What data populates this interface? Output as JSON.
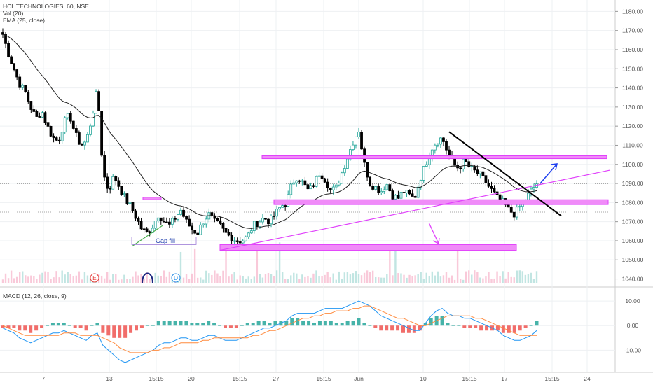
{
  "legend": {
    "symbol": "HCL TECHNOLOGIES, 60, NSE",
    "volume": "Vol (20)",
    "ema": "EMA (25, close)",
    "macd": "MACD (12, 26, close, 9)"
  },
  "colors": {
    "up": "#26a69a",
    "down": "#000000",
    "ema": "#222222",
    "zone": "#e040fb",
    "zone_fill": "#f08bf8",
    "arrow_pink": "#e040fb",
    "arrow_blue": "#1e3ff0",
    "macd_line": "#2196f3",
    "signal_line": "#ff8a3d",
    "hist_up": "#26a69a",
    "hist_down": "#ef5350",
    "trendline": "#000000"
  },
  "chart_data": [
    {
      "type": "candlestick",
      "title": "HCL TECHNOLOGIES, 60, NSE",
      "ylim": [
        1038,
        1186
      ],
      "y_ticks": [
        1040,
        1050,
        1060,
        1070,
        1080,
        1090,
        1100,
        1110,
        1120,
        1130,
        1140,
        1150,
        1160,
        1170,
        1180
      ],
      "x_ticks": [
        "7",
        "13",
        "15:15",
        "20",
        "15:15",
        "27",
        "15:15",
        "Jun",
        "10",
        "15:15",
        "17",
        "15:15",
        "24"
      ],
      "grid": true,
      "current_price_line": 1090,
      "reference_line": 1075,
      "path": [
        1168,
        1158,
        1150,
        1142,
        1138,
        1130,
        1124,
        1128,
        1120,
        1114,
        1112,
        1122,
        1126,
        1116,
        1110,
        1112,
        1124,
        1140,
        1096,
        1086,
        1094,
        1088,
        1082,
        1078,
        1072,
        1066,
        1064,
        1068,
        1074,
        1070,
        1068,
        1072,
        1076,
        1070,
        1066,
        1064,
        1070,
        1074,
        1070,
        1068,
        1064,
        1062,
        1060,
        1060,
        1062,
        1068,
        1070,
        1072,
        1070,
        1074,
        1078,
        1080,
        1090,
        1094,
        1090,
        1086,
        1090,
        1096,
        1092,
        1086,
        1088,
        1096,
        1104,
        1112,
        1118,
        1100,
        1090,
        1088,
        1086,
        1090,
        1084,
        1082,
        1086,
        1084,
        1082,
        1092,
        1100,
        1108,
        1112,
        1114,
        1106,
        1100,
        1098,
        1102,
        1098,
        1096,
        1094,
        1090,
        1086,
        1082,
        1080,
        1076,
        1074,
        1078,
        1082,
        1086,
        1090
      ],
      "ema_period": 25,
      "series": [
        {
          "name": "Vol (20)",
          "volume_ref": true
        },
        {
          "name": "EMA (25, close)",
          "line": true
        }
      ],
      "markers": [
        "E",
        "D"
      ],
      "annotations": [
        {
          "text": "Gap fill"
        }
      ],
      "zones": [
        {
          "from": 1103,
          "to": 1104,
          "range": [
            "2019-06-01",
            "2019-06-20"
          ]
        },
        {
          "from": 1079,
          "to": 1081,
          "range": [
            "2019-05-28",
            "2019-06-20"
          ]
        },
        {
          "from": 1055,
          "to": 1058,
          "range": [
            "2019-05-22",
            "2019-06-18"
          ]
        },
        {
          "from": 1081,
          "to": 1083,
          "range": [
            "2019-05-15",
            "2019-05-16"
          ]
        }
      ]
    },
    {
      "type": "macd",
      "title": "MACD (12, 26, close, 9)",
      "ylim": [
        -17,
        14
      ],
      "y_ticks": [
        10,
        0,
        -10
      ],
      "series": [
        {
          "name": "MACD",
          "key": "macd"
        },
        {
          "name": "Signal",
          "key": "signal"
        }
      ],
      "macd": [
        -1,
        -2,
        -3,
        -5,
        -6,
        -7,
        -6,
        -5,
        -4,
        -3,
        -3,
        -2,
        -3,
        -4,
        -5,
        -6,
        -4,
        -3,
        -8,
        -10,
        -12,
        -14,
        -15,
        -14,
        -13,
        -12,
        -11,
        -10,
        -8,
        -7,
        -7,
        -6,
        -5,
        -5,
        -6,
        -6,
        -5,
        -4,
        -4,
        -5,
        -6,
        -6,
        -6,
        -5,
        -4,
        -3,
        -2,
        -1,
        -1,
        0,
        1,
        2,
        4,
        5,
        5,
        5,
        5,
        6,
        7,
        7,
        7,
        7,
        8,
        9,
        10,
        9,
        8,
        6,
        4,
        3,
        2,
        1,
        0,
        -1,
        -2,
        -2,
        1,
        4,
        6,
        7,
        5,
        4,
        4,
        3,
        3,
        2,
        1,
        0,
        -1,
        -2,
        -4,
        -5,
        -6,
        -6,
        -5,
        -4,
        -2
      ],
      "signal": [
        0,
        -1,
        -2,
        -3,
        -4,
        -4,
        -4,
        -4,
        -4,
        -4,
        -4,
        -3,
        -3,
        -3,
        -4,
        -4,
        -4,
        -4,
        -5,
        -6,
        -7,
        -9,
        -10,
        -11,
        -11,
        -11,
        -11,
        -10,
        -10,
        -9,
        -9,
        -8,
        -7,
        -7,
        -7,
        -7,
        -6,
        -6,
        -5,
        -5,
        -5,
        -5,
        -5,
        -5,
        -5,
        -4,
        -4,
        -3,
        -2,
        -2,
        -1,
        0,
        1,
        2,
        3,
        3,
        4,
        4,
        5,
        5,
        6,
        6,
        6,
        7,
        7,
        8,
        8,
        7,
        6,
        5,
        4,
        3,
        3,
        2,
        1,
        0,
        0,
        1,
        2,
        3,
        4,
        4,
        4,
        4,
        4,
        3,
        3,
        2,
        1,
        0,
        -1,
        -2,
        -3,
        -4,
        -4,
        -4,
        -4
      ]
    }
  ]
}
